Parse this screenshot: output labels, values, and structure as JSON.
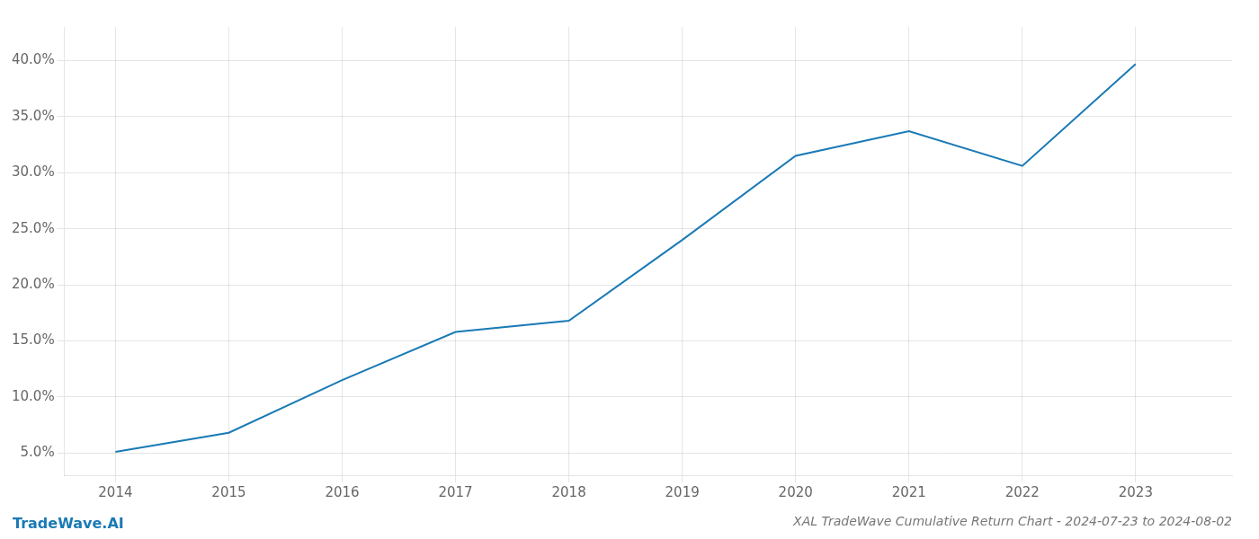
{
  "chart_data": {
    "type": "line",
    "title": "XAL TradeWave Cumulative Return Chart - 2024-07-23 to 2024-08-02",
    "annotations": [
      "TradeWave.AI"
    ],
    "x": [
      2014,
      2015,
      2016,
      2017,
      2018,
      2019,
      2020,
      2021,
      2022,
      2023
    ],
    "values": [
      5.1,
      6.8,
      11.5,
      15.8,
      16.8,
      24.0,
      31.5,
      33.7,
      30.6,
      39.7
    ],
    "color": "#1a7ab5",
    "xlim": [
      2013.55,
      2023.85
    ],
    "xticks": [
      2014,
      2015,
      2016,
      2017,
      2018,
      2019,
      2020,
      2021,
      2022,
      2023
    ],
    "ylim": [
      3.0,
      43.0
    ],
    "yticks": [
      {
        "value": 5.0,
        "label": "5.0%"
      },
      {
        "value": 10.0,
        "label": "10.0%"
      },
      {
        "value": 15.0,
        "label": "15.0%"
      },
      {
        "value": 20.0,
        "label": "20.0%"
      },
      {
        "value": 25.0,
        "label": "25.0%"
      },
      {
        "value": 30.0,
        "label": "30.0%"
      },
      {
        "value": 35.0,
        "label": "35.0%"
      },
      {
        "value": 40.0,
        "label": "40.0%"
      }
    ],
    "grid": true
  }
}
